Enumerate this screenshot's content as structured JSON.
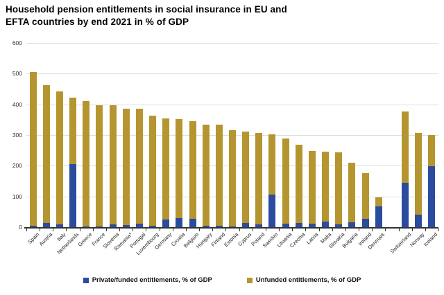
{
  "title_lines": [
    "Household pension entitlements in social insurance in EU and",
    "EFTA countries by end 2021 in % of GDP"
  ],
  "chart_data": {
    "type": "bar",
    "stacked": true,
    "title": "Household pension entitlements in social insurance in EU and EFTA countries by end 2021 in % of GDP",
    "categories": [
      "Spain",
      "Austria",
      "Italy",
      "Netherlands",
      "Greece",
      "France",
      "Slovenia",
      "Romania*",
      "Portugal",
      "Luxembourg",
      "Germany",
      "Croatia",
      "Belgium",
      "Hungary",
      "Finland",
      "Estonia",
      "Cyprus",
      "Poland",
      "Sweden",
      "Lituania",
      "Czechia",
      "Latvia",
      "Malta",
      "Slovakia",
      "Bulgaria",
      "Ireland",
      "Denmark",
      "Switzerland",
      "Norway",
      "Iceland"
    ],
    "series": [
      {
        "name": "Private/funded entitlements, % of GDP",
        "color": "#2B4B9F",
        "values": [
          5,
          13,
          9,
          205,
          3,
          3,
          10,
          7,
          12,
          5,
          25,
          30,
          27,
          4,
          5,
          2,
          14,
          10,
          105,
          11,
          13,
          12,
          19,
          10,
          15,
          26,
          68,
          144,
          40,
          198
        ]
      },
      {
        "name": "Unfunded entitlements, % of GDP",
        "color": "#B5952F",
        "values": [
          500,
          449,
          432,
          217,
          408,
          395,
          386,
          379,
          373,
          358,
          329,
          322,
          317,
          330,
          329,
          314,
          298,
          296,
          197,
          277,
          255,
          237,
          227,
          233,
          195,
          150,
          29,
          232,
          266,
          102
        ]
      }
    ],
    "totals": [
      505,
      462,
      441,
      422,
      411,
      398,
      396,
      386,
      385,
      363,
      354,
      352,
      344,
      334,
      334,
      316,
      312,
      306,
      302,
      288,
      268,
      249,
      246,
      243,
      210,
      176,
      97,
      376,
      306,
      300
    ],
    "xlabel": "",
    "ylabel": "",
    "ylim": [
      0,
      600
    ],
    "yticks": [
      0,
      100,
      200,
      300,
      400,
      500,
      600
    ],
    "grid": true,
    "legend_position": "bottom",
    "gap_after_index": 26
  }
}
